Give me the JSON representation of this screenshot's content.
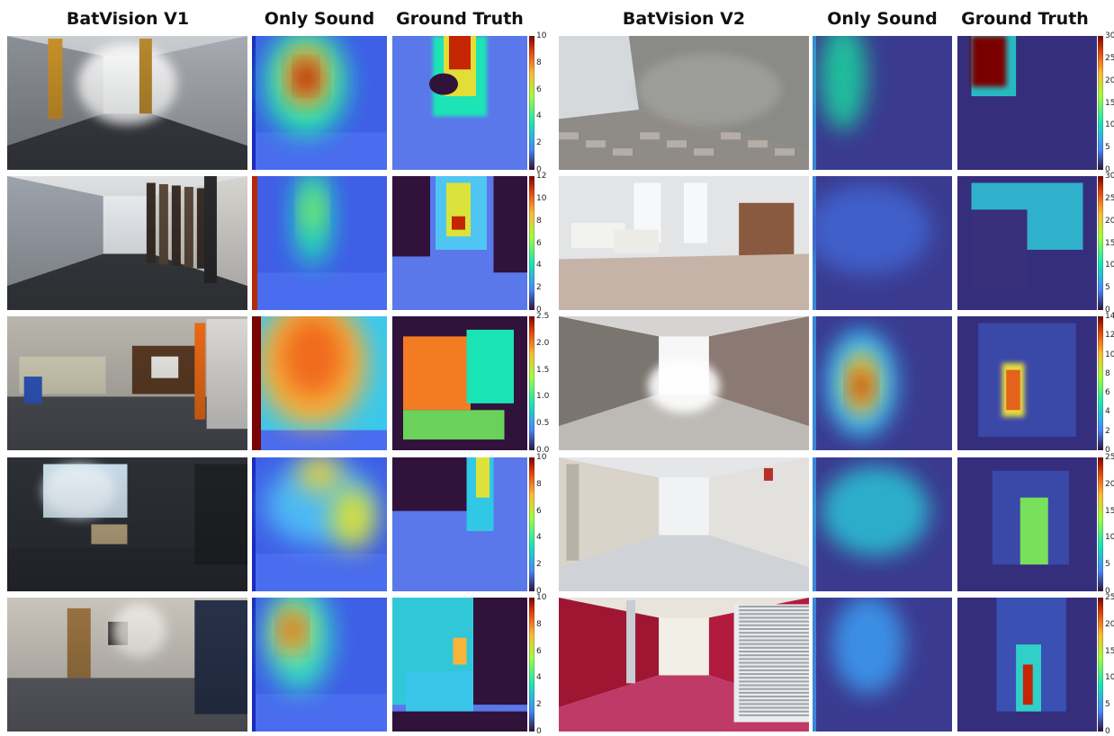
{
  "headers": {
    "v1": "BatVision V1",
    "v1_sound": "Only Sound",
    "v1_truth": "Ground Truth",
    "v2": "BatVision V2",
    "v2_sound": "Only Sound",
    "v2_truth": "Ground Truth"
  },
  "v1_rows": [
    {
      "scene": "hallway-carpet",
      "ticks": [
        "10",
        "8",
        "6",
        "4",
        "2",
        "0"
      ]
    },
    {
      "scene": "office-shelves",
      "ticks": [
        "12",
        "10",
        "8",
        "6",
        "4",
        "2",
        "0"
      ]
    },
    {
      "scene": "office-cabinets",
      "ticks": [
        "2.5",
        "2.0",
        "1.5",
        "1.0",
        "0.5",
        "0.0"
      ]
    },
    {
      "scene": "office-windows",
      "ticks": [
        "10",
        "8",
        "6",
        "4",
        "2",
        "0"
      ]
    },
    {
      "scene": "office-person",
      "ticks": [
        "10",
        "8",
        "6",
        "4",
        "2",
        "0"
      ]
    }
  ],
  "v2_rows": [
    {
      "scene": "cobblestone-street",
      "ticks": [
        "30",
        "25",
        "20",
        "15",
        "10",
        "5",
        "0"
      ]
    },
    {
      "scene": "cafeteria",
      "ticks": [
        "30",
        "25",
        "20",
        "15",
        "10",
        "5",
        "0"
      ]
    },
    {
      "scene": "stone-tunnel",
      "ticks": [
        "14",
        "12",
        "10",
        "8",
        "6",
        "4",
        "2",
        "0"
      ]
    },
    {
      "scene": "white-corridor",
      "ticks": [
        "25",
        "20",
        "15",
        "10",
        "5",
        "0"
      ]
    },
    {
      "scene": "red-corridor",
      "ticks": [
        "25",
        "20",
        "15",
        "10",
        "5",
        "0"
      ]
    }
  ],
  "colors": {
    "jet_dark": "#30123b",
    "jet_blue": "#4686fb",
    "jet_cyan": "#1ae4b6",
    "jet_yellow": "#faba39",
    "jet_red": "#c42503",
    "jet_darkred": "#7a0403"
  }
}
